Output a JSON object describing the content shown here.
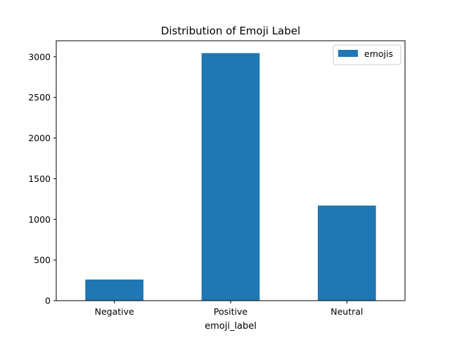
{
  "chart_data": {
    "type": "bar",
    "title": "Distribution of Emoji Label",
    "xlabel": "emoji_label",
    "ylabel": "",
    "categories": [
      "Negative",
      "Positive",
      "Neutral"
    ],
    "series": [
      {
        "name": "emojis",
        "values": [
          260,
          3045,
          1170
        ],
        "color": "#1f77b4"
      }
    ],
    "ylim": [
      0,
      3197
    ],
    "yticks": [
      0,
      500,
      1000,
      1500,
      2000,
      2500,
      3000
    ],
    "grid": false,
    "legend_position": "top-right"
  }
}
